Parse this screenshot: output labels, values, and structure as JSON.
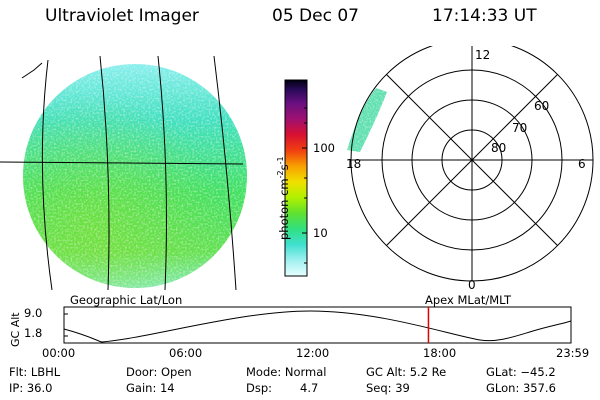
{
  "header": {
    "instrument": "Ultraviolet Imager",
    "date": "05 Dec 07",
    "time": "17:14:33 UT"
  },
  "geo_panel": {
    "label": "Geographic Lat/Lon"
  },
  "colorbar": {
    "unit_main": "photon cm",
    "unit_exp1": "-2",
    "unit_s": "s",
    "unit_exp2": "-1",
    "ticks": [
      "100",
      "10"
    ],
    "colors": [
      "#000000",
      "#2a0a5a",
      "#5a1080",
      "#8a1080",
      "#c0104a",
      "#e02020",
      "#f06010",
      "#f8a000",
      "#f0e000",
      "#c0f000",
      "#80f020",
      "#40e040",
      "#30e090",
      "#40e0d0",
      "#90f0f0",
      "#e0ffff"
    ]
  },
  "polar_panel": {
    "label": "Apex  MLat/MLT",
    "mlt_labels": {
      "top": "12",
      "bottom": "0",
      "left": "18",
      "right": "6"
    },
    "lat_labels": [
      "60",
      "70",
      "80"
    ]
  },
  "timeline": {
    "axis_label": "GC Alt",
    "y_ticks": [
      "9.0",
      "1.8"
    ],
    "x_ticks": [
      "00:00",
      "06:00",
      "12:00",
      "18:00",
      "23:59"
    ],
    "marker_time_hours": 17.24,
    "marker_color": "#e00000"
  },
  "info": {
    "filter": "Flt: LBHL",
    "ip": "IP: 36.0",
    "door": "Door: Open",
    "gain": "Gain: 14",
    "mode": "Mode: Normal",
    "dsp_label": "Dsp:",
    "dsp_value": "4.7",
    "gc_alt": "GC Alt: 5.2 Re",
    "seq": "Seq: 39",
    "glat": "GLat: −45.2",
    "glon": "GLon: 357.6"
  }
}
